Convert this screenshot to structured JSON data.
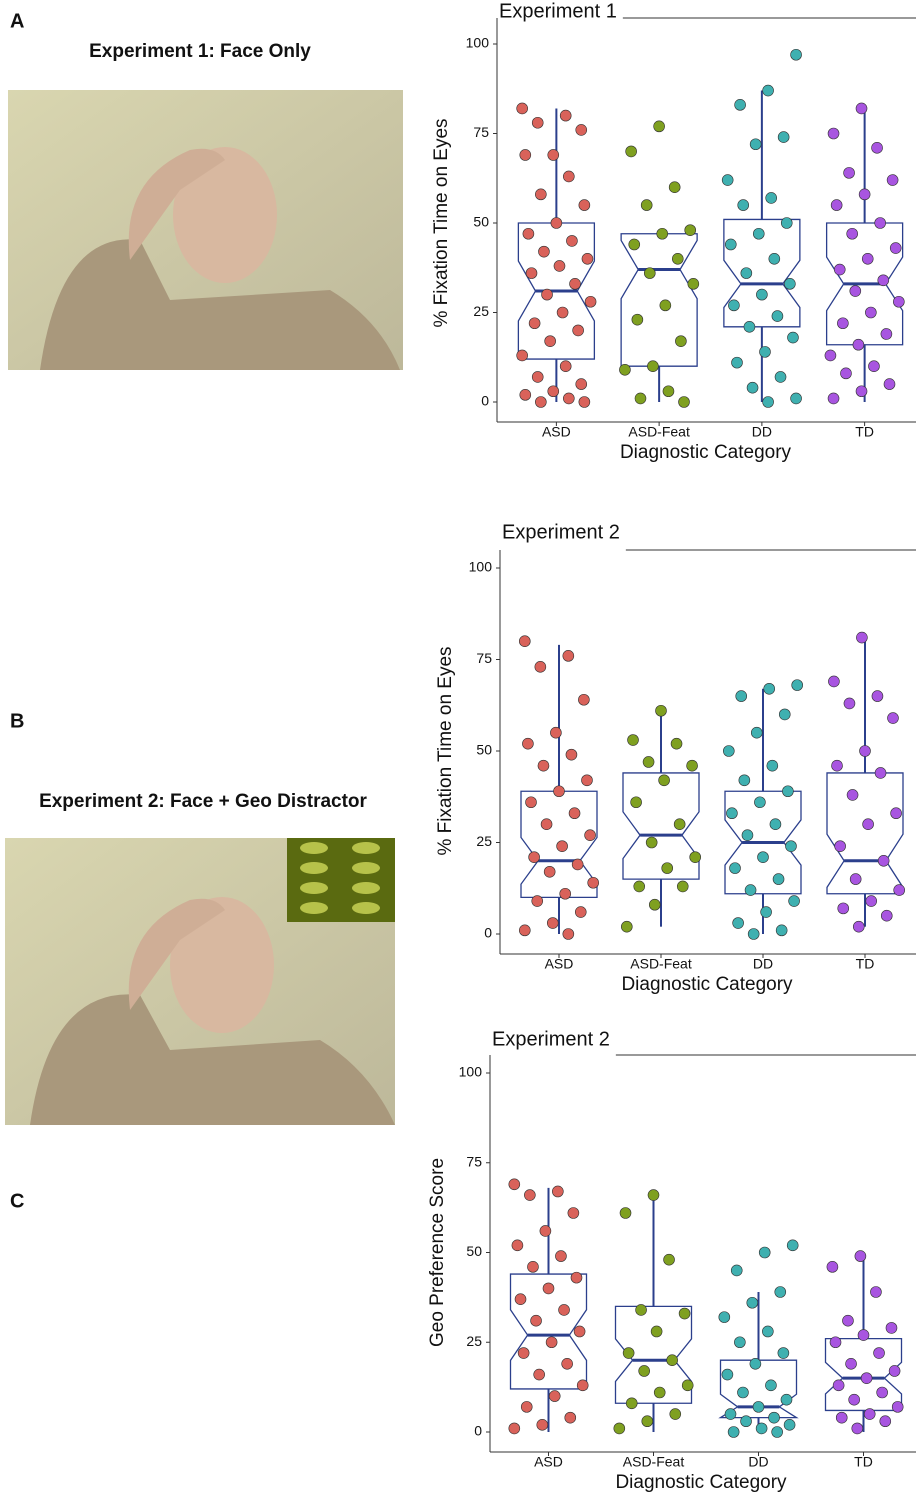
{
  "panel_labels": [
    "A",
    "B",
    "C"
  ],
  "captions": [
    "Experiment 1: Face Only",
    "Experiment 2: Face + Geo Distractor"
  ],
  "chart_data": [
    {
      "type": "box",
      "title": "Experiment 1",
      "y_label": "% Fixation Time on Eyes",
      "x_label": "Diagnostic Category",
      "categories": [
        "ASD",
        "ASD-Feat",
        "DD",
        "TD"
      ],
      "ylim": [
        0,
        100
      ],
      "yticks": [
        0,
        25,
        50,
        75,
        100
      ],
      "boxes": [
        {
          "color": "#d9625a",
          "whisker_low": 0,
          "q1": 12,
          "median": 31,
          "q3": 50,
          "whisker_high": 82,
          "points": [
            82,
            80,
            78,
            76,
            69,
            69,
            63,
            58,
            55,
            50,
            47,
            45,
            42,
            40,
            38,
            36,
            33,
            30,
            28,
            25,
            22,
            20,
            17,
            13,
            10,
            7,
            5,
            3,
            2,
            1,
            0,
            0
          ]
        },
        {
          "color": "#7fa020",
          "whisker_low": 0,
          "q1": 10,
          "median": 37,
          "q3": 47,
          "whisker_high": 47,
          "points": [
            77,
            70,
            60,
            55,
            48,
            47,
            44,
            40,
            36,
            33,
            27,
            23,
            17,
            10,
            9,
            3,
            1,
            0
          ]
        },
        {
          "color": "#3fb0b0",
          "whisker_low": 0,
          "q1": 21,
          "median": 33,
          "q3": 51,
          "whisker_high": 87,
          "points": [
            97,
            87,
            83,
            74,
            72,
            62,
            57,
            55,
            50,
            47,
            44,
            40,
            36,
            33,
            30,
            27,
            24,
            21,
            18,
            14,
            11,
            7,
            4,
            1,
            0
          ]
        },
        {
          "color": "#a855e0",
          "whisker_low": 0,
          "q1": 16,
          "median": 33,
          "q3": 50,
          "whisker_high": 82,
          "points": [
            82,
            75,
            71,
            64,
            62,
            58,
            55,
            50,
            47,
            43,
            40,
            37,
            34,
            31,
            28,
            25,
            22,
            19,
            16,
            13,
            10,
            8,
            5,
            3,
            1
          ]
        }
      ]
    },
    {
      "type": "box",
      "title": "Experiment 2",
      "y_label": "% Fixation Time on Eyes",
      "x_label": "Diagnostic Category",
      "categories": [
        "ASD",
        "ASD-Feat",
        "DD",
        "TD"
      ],
      "ylim": [
        0,
        100
      ],
      "yticks": [
        0,
        25,
        50,
        75,
        100
      ],
      "boxes": [
        {
          "color": "#d9625a",
          "whisker_low": 0,
          "q1": 10,
          "median": 20,
          "q3": 39,
          "whisker_high": 79,
          "points": [
            80,
            76,
            73,
            64,
            55,
            52,
            49,
            46,
            42,
            39,
            36,
            33,
            30,
            27,
            24,
            21,
            19,
            17,
            14,
            11,
            9,
            6,
            3,
            1,
            0
          ]
        },
        {
          "color": "#7fa020",
          "whisker_low": 2,
          "q1": 15,
          "median": 27,
          "q3": 44,
          "whisker_high": 61,
          "points": [
            61,
            53,
            52,
            47,
            46,
            42,
            36,
            30,
            25,
            21,
            18,
            13,
            13,
            8,
            2
          ]
        },
        {
          "color": "#3fb0b0",
          "whisker_low": 0,
          "q1": 11,
          "median": 25,
          "q3": 39,
          "whisker_high": 67,
          "points": [
            68,
            67,
            65,
            60,
            55,
            50,
            46,
            42,
            39,
            36,
            33,
            30,
            27,
            24,
            21,
            18,
            15,
            12,
            9,
            6,
            3,
            1,
            0
          ]
        },
        {
          "color": "#a855e0",
          "whisker_low": 2,
          "q1": 11,
          "median": 20,
          "q3": 44,
          "whisker_high": 81,
          "points": [
            81,
            69,
            65,
            63,
            59,
            50,
            46,
            44,
            38,
            33,
            30,
            24,
            20,
            15,
            12,
            9,
            7,
            5,
            2
          ]
        }
      ]
    },
    {
      "type": "box",
      "title": "Experiment 2",
      "y_label": "Geo Preference Score",
      "x_label": "Diagnostic Category",
      "categories": [
        "ASD",
        "ASD-Feat",
        "DD",
        "TD"
      ],
      "ylim": [
        0,
        100
      ],
      "yticks": [
        0,
        25,
        50,
        75,
        100
      ],
      "boxes": [
        {
          "color": "#d9625a",
          "whisker_low": 0,
          "q1": 12,
          "median": 27,
          "q3": 44,
          "whisker_high": 68,
          "points": [
            69,
            67,
            66,
            61,
            56,
            52,
            49,
            46,
            43,
            40,
            37,
            34,
            31,
            28,
            25,
            22,
            19,
            16,
            13,
            10,
            7,
            4,
            2,
            1
          ]
        },
        {
          "color": "#7fa020",
          "whisker_low": 0,
          "q1": 8,
          "median": 20,
          "q3": 35,
          "whisker_high": 66,
          "points": [
            66,
            61,
            48,
            34,
            33,
            28,
            22,
            20,
            17,
            13,
            11,
            8,
            5,
            3,
            1
          ]
        },
        {
          "color": "#3fb0b0",
          "whisker_low": 0,
          "q1": 4,
          "median": 7,
          "q3": 20,
          "whisker_high": 39,
          "points": [
            52,
            50,
            45,
            39,
            36,
            32,
            28,
            25,
            22,
            19,
            16,
            13,
            11,
            9,
            7,
            5,
            4,
            3,
            2,
            1,
            0,
            0
          ]
        },
        {
          "color": "#a855e0",
          "whisker_low": 0,
          "q1": 6,
          "median": 15,
          "q3": 26,
          "whisker_high": 49,
          "points": [
            49,
            46,
            39,
            31,
            29,
            27,
            25,
            22,
            19,
            17,
            15,
            13,
            11,
            9,
            7,
            5,
            4,
            3,
            1
          ]
        }
      ]
    }
  ]
}
